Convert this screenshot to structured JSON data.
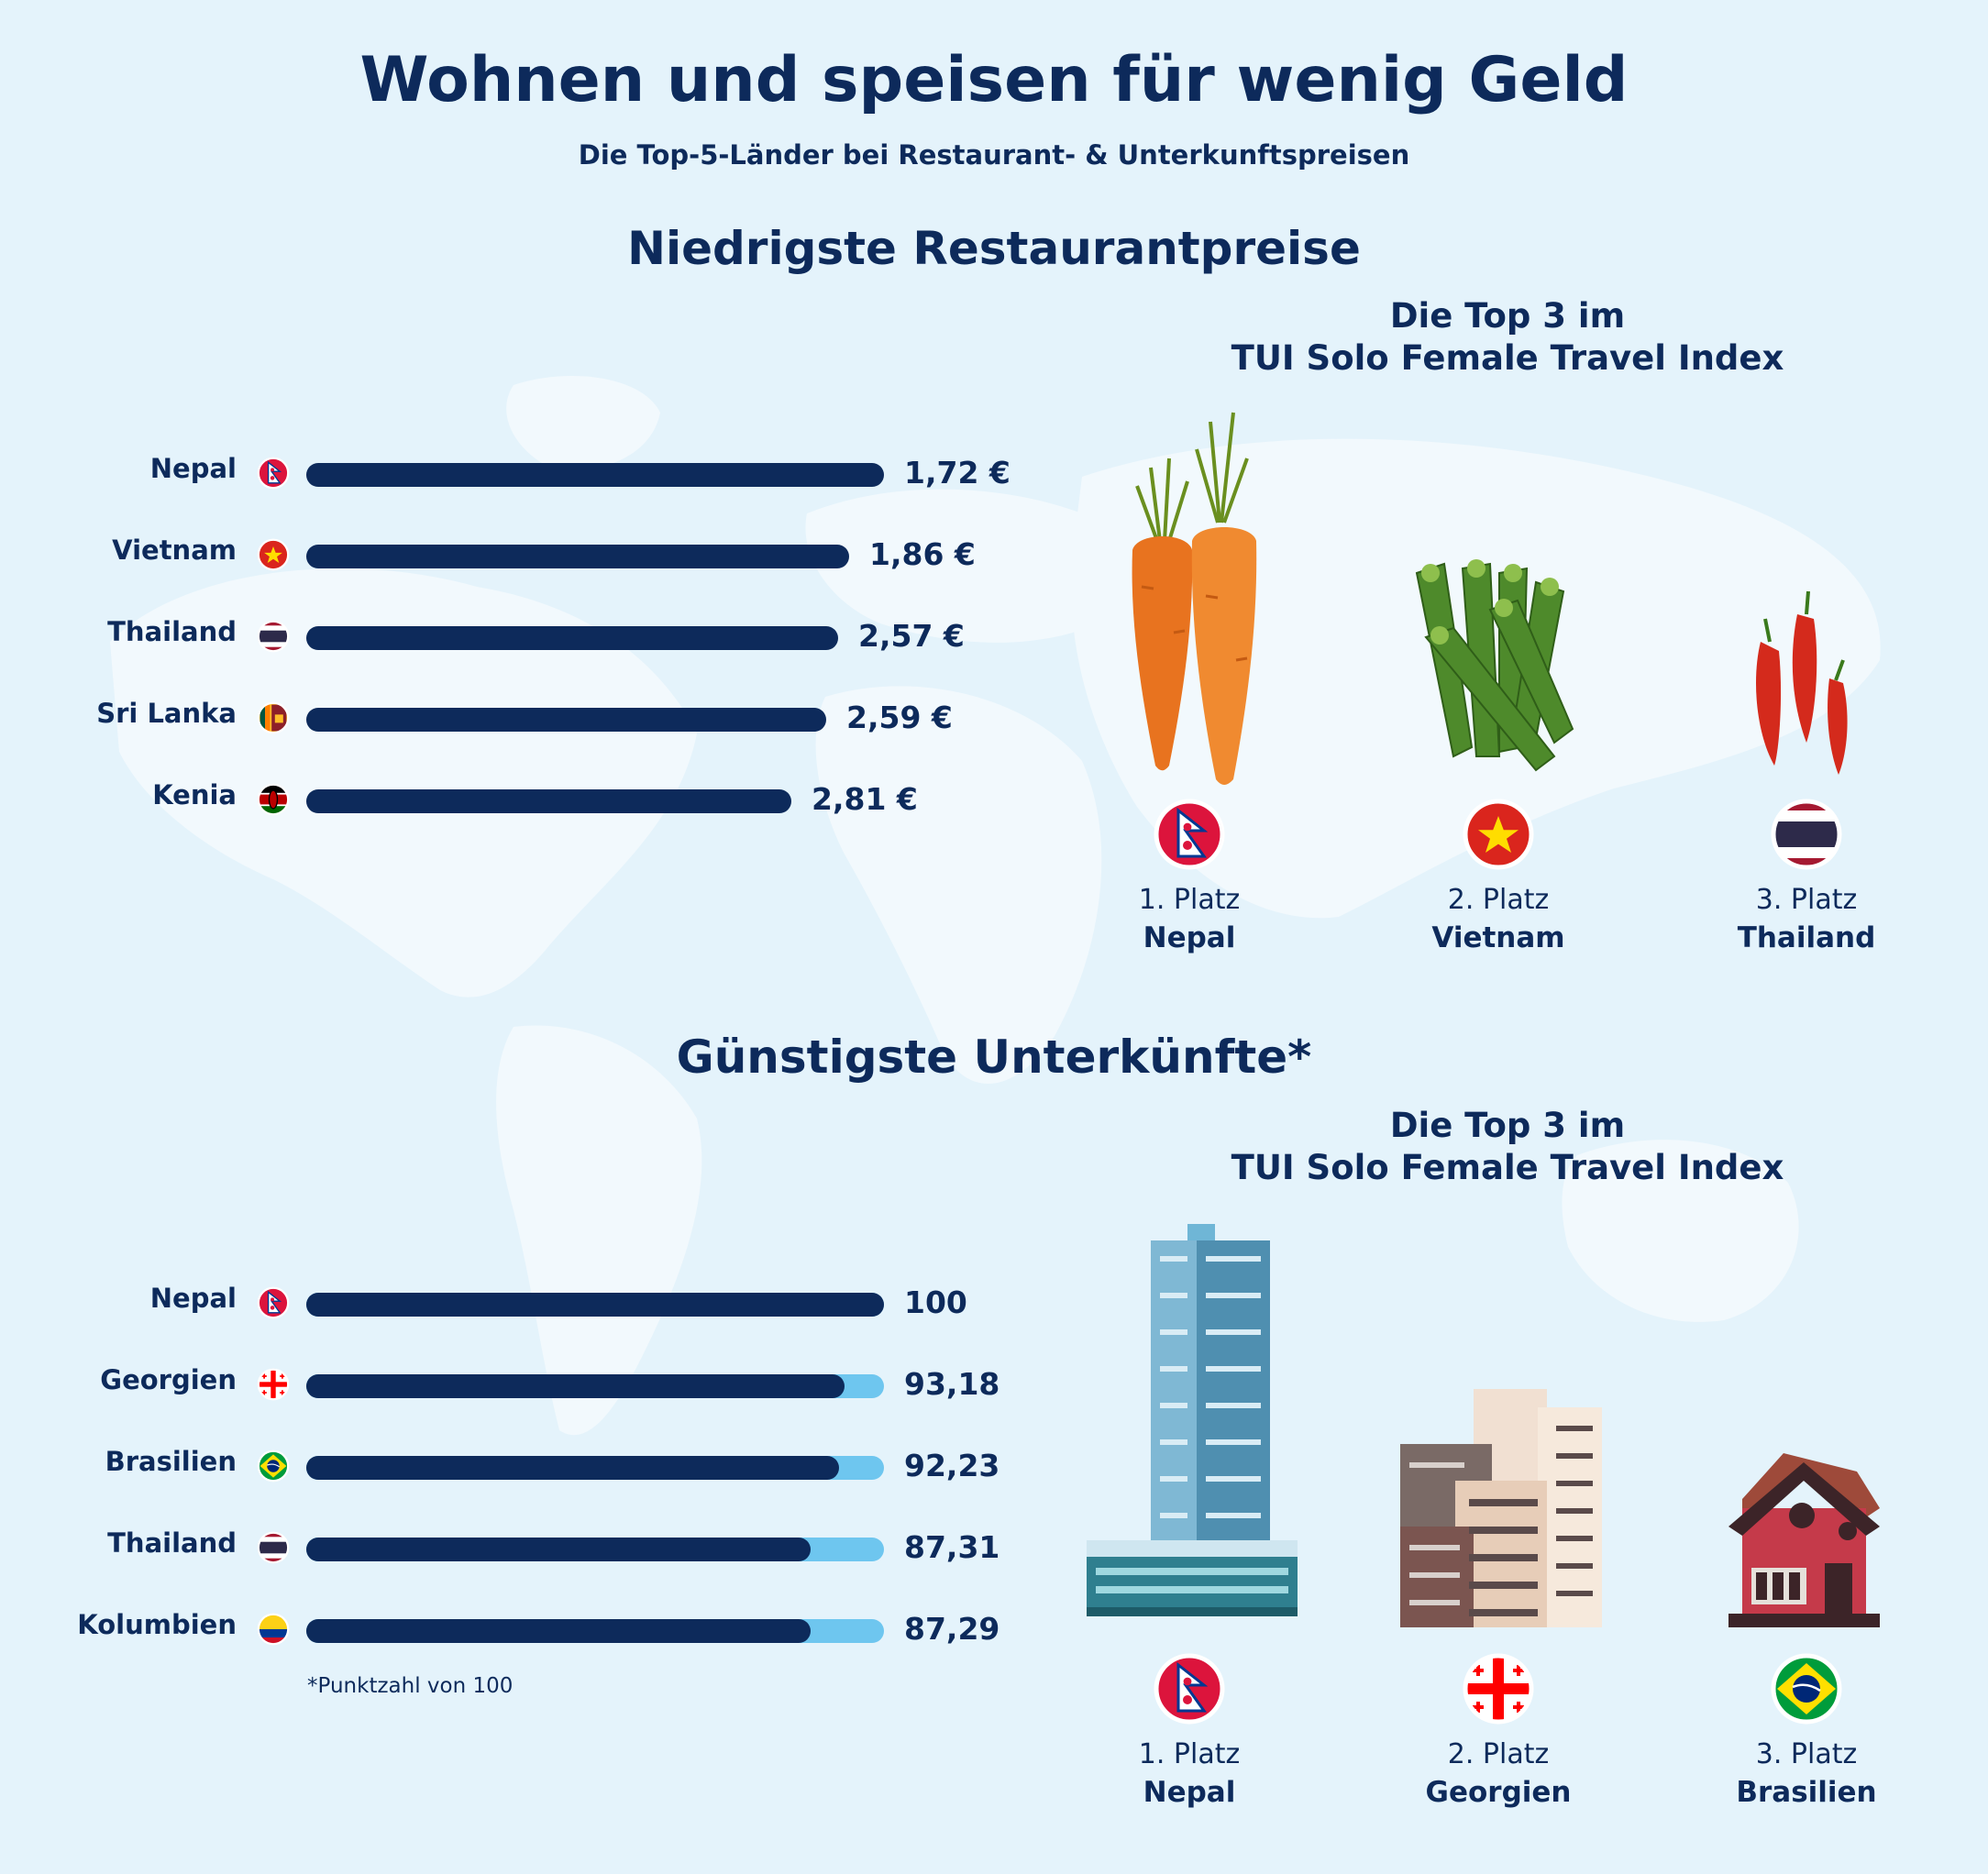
{
  "title": "Wohnen und speisen für wenig Geld",
  "subtitle": "Die Top-5-Länder bei Restaurant- & Unterkunftspreisen",
  "restaurant": {
    "heading": "Niedrigste Restaurantpreise",
    "top3_line1": "Die Top 3 im",
    "top3_line2": "TUI Solo Female Travel Index",
    "podium": [
      {
        "rank": "1. Platz",
        "country": "Nepal",
        "flag": "nepal-flag",
        "icon": "carrots-icon"
      },
      {
        "rank": "2. Platz",
        "country": "Vietnam",
        "flag": "vietnam-flag",
        "icon": "okra-icon"
      },
      {
        "rank": "3. Platz",
        "country": "Thailand",
        "flag": "thailand-flag",
        "icon": "chili-peppers-icon"
      }
    ]
  },
  "accommodation": {
    "heading": "Günstigste Unterkünfte*",
    "top3_line1": "Die Top 3 im",
    "top3_line2": "TUI Solo Female Travel Index",
    "footnote": "*Punktzahl von 100",
    "podium": [
      {
        "rank": "1. Platz",
        "country": "Nepal",
        "flag": "nepal-flag",
        "icon": "skyscraper-icon"
      },
      {
        "rank": "2. Platz",
        "country": "Georgien",
        "flag": "georgia-flag",
        "icon": "office-buildings-icon"
      },
      {
        "rank": "3. Platz",
        "country": "Brasilien",
        "flag": "brazil-flag",
        "icon": "house-icon"
      }
    ]
  },
  "colors": {
    "background": "#e4f3fb",
    "map": "#f2f9fd",
    "bar": "#0d2a5b",
    "track": "#6ec6ef",
    "text": "#0d2a5b"
  },
  "chart_data": [
    {
      "type": "bar",
      "orientation": "horizontal",
      "title": "Niedrigste Restaurantpreise",
      "categories": [
        "Nepal",
        "Vietnam",
        "Thailand",
        "Sri Lanka",
        "Kenia"
      ],
      "values": [
        1.72,
        1.86,
        2.57,
        2.59,
        2.81
      ],
      "value_labels": [
        "1,72 €",
        "1,86 €",
        "2,57 €",
        "2,59 €",
        "2,81 €"
      ],
      "flags": [
        "nepal-flag",
        "vietnam-flag",
        "thailand-flag",
        "srilanka-flag",
        "kenya-flag"
      ],
      "bar_scores": [
        100,
        94,
        92,
        90,
        84
      ]
    },
    {
      "type": "bar",
      "orientation": "horizontal",
      "title": "Günstigste Unterkünfte*",
      "categories": [
        "Nepal",
        "Georgien",
        "Brasilien",
        "Thailand",
        "Kolumbien"
      ],
      "values": [
        100,
        93.18,
        92.23,
        87.31,
        87.29
      ],
      "value_labels": [
        "100",
        "93,18",
        "92,23",
        "87,31",
        "87,29"
      ],
      "flags": [
        "nepal-flag",
        "georgia-flag",
        "brazil-flag",
        "thailand-flag",
        "colombia-flag"
      ],
      "max": 100
    }
  ]
}
